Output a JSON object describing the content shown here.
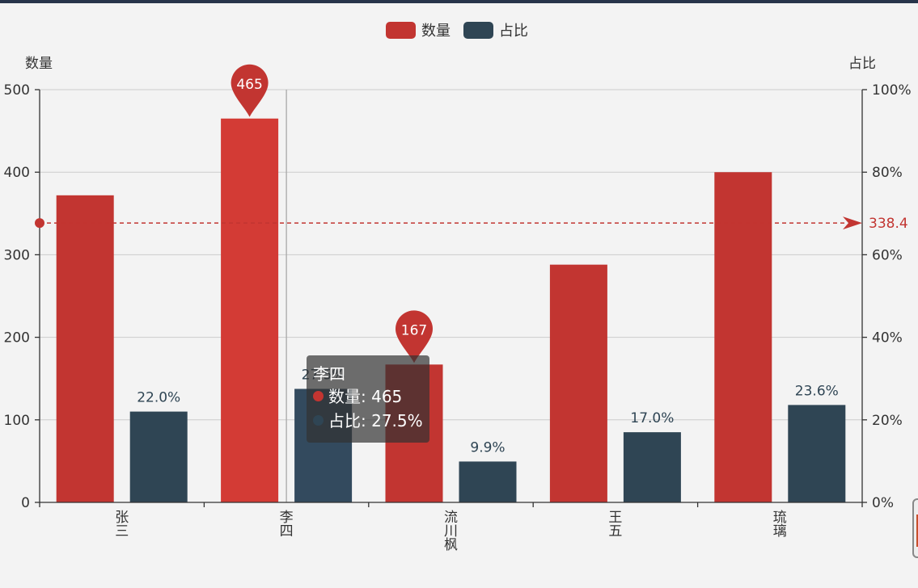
{
  "chart_data": {
    "type": "bar",
    "categories": [
      "张三",
      "李四",
      "流川枫",
      "王五",
      "琉璃"
    ],
    "series": [
      {
        "name": "数量",
        "axis": "left",
        "values": [
          372,
          465,
          167,
          288,
          400
        ],
        "color": "#c23531",
        "highlight_color": "#d33b35"
      },
      {
        "name": "占比",
        "axis": "right",
        "values": [
          22.0,
          27.5,
          9.9,
          17.0,
          23.6
        ],
        "value_labels": [
          "22.0%",
          "27.5%",
          "9.9%",
          "17.0%",
          "23.6%"
        ],
        "color": "#2f4554",
        "highlight_color": "#334a5e"
      }
    ],
    "y_left": {
      "name": "数量",
      "min": 0,
      "max": 500,
      "ticks": [
        0,
        100,
        200,
        300,
        400,
        500
      ],
      "tick_labels": [
        "0",
        "100",
        "200",
        "300",
        "400",
        "500"
      ]
    },
    "y_right": {
      "name": "占比",
      "min": 0,
      "max": 100,
      "ticks": [
        0,
        20,
        40,
        60,
        80,
        100
      ],
      "tick_labels": [
        "0%",
        "20%",
        "40%",
        "60%",
        "80%",
        "100%"
      ]
    },
    "mark_points": [
      {
        "category": "李四",
        "value": 465,
        "label": "465"
      },
      {
        "category": "流川枫",
        "value": 167,
        "label": "167"
      }
    ],
    "mark_line": {
      "value": 338.4,
      "label": "338.4"
    },
    "legend": {
      "position": "top-center",
      "items": [
        "数量",
        "占比"
      ]
    },
    "grid": true,
    "highlighted_category": "李四",
    "tooltip": {
      "title": "李四",
      "rows": [
        {
          "label": "数量: 465",
          "color": "#c23531"
        },
        {
          "label": "占比: 27.5%",
          "color": "#2f4554"
        }
      ]
    }
  }
}
